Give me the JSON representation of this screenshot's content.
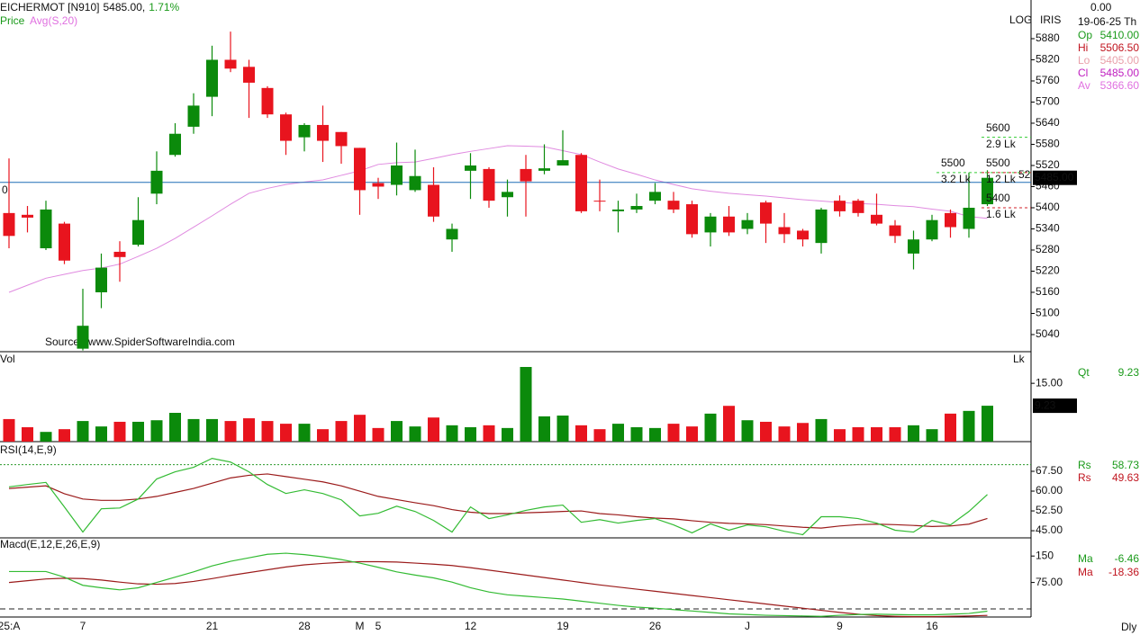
{
  "header": {
    "symbol": "EICHERMOT [N910]",
    "price": "5485.00,",
    "change": "1.71%",
    "log": "LOG",
    "iris": "IRIS",
    "footer": "Dly"
  },
  "info": {
    "top": "0.00",
    "date": "19-06-25 Th",
    "rows": [
      {
        "label": "Op",
        "value": "5410.00"
      },
      {
        "label": "Hi",
        "value": "5506.50"
      },
      {
        "label": "Lo",
        "value": "5405.00"
      },
      {
        "label": "Cl",
        "value": "5485.00"
      },
      {
        "label": "Av",
        "value": "5366.60"
      }
    ]
  },
  "chart_data": [
    {
      "type": "candlestick",
      "name": "Price",
      "source": "Source : www.SpiderSoftwareIndia.com",
      "up_color": "#0b8a0b",
      "down_color": "#e8141e",
      "categories": [
        "25:A",
        null,
        null,
        null,
        "7",
        null,
        null,
        null,
        null,
        null,
        null,
        "21",
        null,
        null,
        null,
        null,
        "28",
        null,
        null,
        "M",
        "5",
        null,
        null,
        null,
        null,
        "12",
        null,
        null,
        null,
        null,
        "19",
        null,
        null,
        null,
        null,
        "26",
        null,
        null,
        null,
        null,
        "J",
        null,
        null,
        null,
        null,
        "9",
        null,
        null,
        null,
        null,
        "16",
        null,
        null,
        null
      ],
      "open": [
        5385,
        5380,
        5285,
        5355,
        5000,
        5160,
        5275,
        5295,
        5440,
        5550,
        5630,
        5715,
        5820,
        5800,
        5740,
        5665,
        5600,
        5635,
        5615,
        5570,
        5470,
        5465,
        5450,
        5465,
        5310,
        5505,
        5510,
        5430,
        5510,
        5505,
        5520,
        5550,
        5420,
        5390,
        5395,
        5420,
        5420,
        5410,
        5330,
        5375,
        5340,
        5415,
        5345,
        5335,
        5300,
        5420,
        5420,
        5380,
        5350,
        5270,
        5310,
        5385,
        5340,
        5410
      ],
      "high": [
        5540,
        5405,
        5420,
        5360,
        5170,
        5270,
        5305,
        5430,
        5560,
        5640,
        5725,
        5860,
        5900,
        5820,
        5745,
        5670,
        5640,
        5690,
        5615,
        5570,
        5485,
        5585,
        5565,
        5515,
        5355,
        5555,
        5515,
        5480,
        5550,
        5580,
        5620,
        5555,
        5480,
        5420,
        5440,
        5470,
        5445,
        5420,
        5385,
        5405,
        5385,
        5420,
        5385,
        5340,
        5400,
        5435,
        5425,
        5440,
        5365,
        5335,
        5380,
        5395,
        5500,
        5506.5
      ],
      "low": [
        5285,
        5330,
        5280,
        5240,
        4995,
        5115,
        5190,
        5290,
        5410,
        5545,
        5610,
        5660,
        5785,
        5655,
        5655,
        5550,
        5560,
        5530,
        5525,
        5380,
        5425,
        5435,
        5445,
        5360,
        5275,
        5425,
        5400,
        5375,
        5375,
        5495,
        5520,
        5385,
        5390,
        5330,
        5385,
        5410,
        5385,
        5315,
        5290,
        5320,
        5325,
        5300,
        5300,
        5290,
        5270,
        5375,
        5375,
        5350,
        5300,
        5225,
        5305,
        5315,
        5315,
        5405
      ],
      "close": [
        5320,
        5372,
        5395,
        5250,
        5065,
        5230,
        5260,
        5365,
        5505,
        5610,
        5690,
        5820,
        5795,
        5755,
        5665,
        5590,
        5635,
        5590,
        5575,
        5450,
        5460,
        5520,
        5490,
        5375,
        5340,
        5520,
        5420,
        5445,
        5475,
        5512,
        5535,
        5390,
        5418,
        5395,
        5405,
        5445,
        5395,
        5325,
        5375,
        5330,
        5365,
        5355,
        5325,
        5310,
        5395,
        5390,
        5385,
        5355,
        5320,
        5310,
        5365,
        5345,
        5400,
        5485
      ],
      "overlays": [
        {
          "name": "Avg(S,20)",
          "color": "#e08ae0",
          "values": [
            5160,
            5180,
            5200,
            5211,
            5222,
            5229,
            5240,
            5262,
            5285,
            5313,
            5345,
            5377,
            5410,
            5441,
            5455,
            5466,
            5473,
            5479,
            5492,
            5505,
            5523,
            5528,
            5530,
            5540,
            5551,
            5560,
            5568,
            5576,
            5575,
            5573,
            5562,
            5551,
            5530,
            5510,
            5495,
            5479,
            5466,
            5454,
            5447,
            5441,
            5437,
            5433,
            5428,
            5423,
            5419,
            5415,
            5412,
            5410,
            5406,
            5403,
            5396,
            5390,
            5375,
            5370
          ]
        }
      ],
      "hline": {
        "value": 5472,
        "color": "#1f6fb5",
        "left_label": "0",
        "right_label": "52"
      },
      "levels": [
        {
          "value": 5600,
          "label": "5600",
          "volume": "2.9 Lk",
          "color": "#33cc33",
          "side": "right"
        },
        {
          "value": 5500,
          "label": "5500",
          "volume": "3.2 Lk",
          "color": "#33cc33",
          "side": "left"
        },
        {
          "value": 5500,
          "label": "5500",
          "volume": "1.2 Lk",
          "color": "#d0202a",
          "side": "right"
        },
        {
          "value": 5400,
          "label": "5400",
          "volume": "1.6 Lk",
          "color": "#d0202a",
          "side": "right"
        }
      ],
      "last_label": "5485.00",
      "ylim": [
        4994,
        5954
      ],
      "yticks": [
        5040,
        5100,
        5160,
        5220,
        5280,
        5340,
        5400,
        5460,
        5520,
        5580,
        5640,
        5700,
        5760,
        5820,
        5880
      ]
    },
    {
      "type": "bar",
      "title": "Vol",
      "unit": "Lk",
      "values": [
        5.8,
        3.7,
        2.5,
        3.2,
        5.3,
        3.9,
        5.1,
        5.1,
        5.5,
        7.4,
        5.8,
        5.8,
        5.3,
        6.0,
        5.3,
        4.6,
        4.6,
        3.2,
        5.3,
        6.9,
        3.5,
        5.3,
        3.9,
        6.2,
        4.2,
        3.7,
        4.2,
        3.5,
        19.2,
        6.5,
        6.7,
        4.2,
        3.2,
        4.6,
        3.7,
        3.5,
        4.6,
        3.9,
        7.2,
        9.2,
        5.5,
        5.1,
        3.9,
        4.8,
        5.8,
        3.2,
        3.7,
        3.7,
        3.7,
        4.2,
        3.2,
        7.2,
        7.9,
        9.23
      ],
      "colors": [
        "#e8141e",
        "#e8141e",
        "#0b8a0b",
        "#e8141e",
        "#0b8a0b",
        "#0b8a0b",
        "#e8141e",
        "#0b8a0b",
        "#0b8a0b",
        "#0b8a0b",
        "#0b8a0b",
        "#0b8a0b",
        "#e8141e",
        "#e8141e",
        "#e8141e",
        "#e8141e",
        "#0b8a0b",
        "#e8141e",
        "#e8141e",
        "#e8141e",
        "#e8141e",
        "#0b8a0b",
        "#0b8a0b",
        "#e8141e",
        "#0b8a0b",
        "#0b8a0b",
        "#e8141e",
        "#0b8a0b",
        "#0b8a0b",
        "#0b8a0b",
        "#0b8a0b",
        "#e8141e",
        "#e8141e",
        "#0b8a0b",
        "#0b8a0b",
        "#0b8a0b",
        "#e8141e",
        "#e8141e",
        "#0b8a0b",
        "#e8141e",
        "#0b8a0b",
        "#e8141e",
        "#e8141e",
        "#e8141e",
        "#0b8a0b",
        "#e8141e",
        "#e8141e",
        "#e8141e",
        "#e8141e",
        "#0b8a0b",
        "#0b8a0b",
        "#e8141e",
        "#0b8a0b",
        "#0b8a0b"
      ],
      "readout": {
        "label": "Qt",
        "value": "9.23"
      },
      "last_label": "9.23",
      "ylim": [
        0,
        22.9
      ],
      "yticks": [
        {
          "value": 15,
          "label": "15.00"
        }
      ]
    },
    {
      "type": "line",
      "title": "RSI(14,E,9)",
      "series": [
        {
          "name": "Rs",
          "color": "#33bb33",
          "readout": "58.73",
          "values": [
            61.6,
            62.5,
            63.3,
            54,
            44.5,
            53.3,
            53.6,
            57,
            64.6,
            67.3,
            69,
            72.4,
            71,
            67.3,
            62.5,
            59.1,
            60.5,
            59.1,
            56.7,
            50.6,
            51.6,
            54.3,
            52.3,
            48.9,
            44.5,
            54,
            49.6,
            51,
            52.7,
            54,
            54.7,
            48.2,
            49.2,
            47.9,
            48.9,
            49.6,
            47.2,
            44.2,
            47.6,
            45.2,
            47.2,
            46.5,
            44.8,
            43.5,
            50.3,
            50.3,
            49.6,
            47.9,
            45.2,
            44.5,
            48.9,
            47.2,
            52.3,
            58.73
          ]
        },
        {
          "name": "Rs",
          "color": "#9b1b1b",
          "readout": "49.63",
          "values": [
            61,
            61.5,
            62,
            59,
            57,
            56.5,
            56.5,
            57,
            58,
            59.5,
            61,
            63,
            65,
            66,
            66.5,
            65.5,
            64.5,
            63.5,
            62,
            60,
            58,
            56.8,
            55.6,
            54.5,
            53,
            52,
            51.5,
            51.5,
            51.8,
            52,
            52.3,
            52.5,
            51.5,
            51,
            50.3,
            49.8,
            49.5,
            48.8,
            48.2,
            47.8,
            47.6,
            47.3,
            46.8,
            46.3,
            46,
            46.8,
            47.3,
            47.5,
            47.3,
            47,
            46.6,
            46.8,
            47.5,
            49.63
          ]
        }
      ],
      "reference_line": {
        "value": 70,
        "color": "#2a9a2a",
        "style": "dotted"
      },
      "ylim": [
        42.3,
        78.4
      ],
      "yticks": [
        {
          "value": 67.5,
          "label": "67.50"
        },
        {
          "value": 60,
          "label": "60.00"
        },
        {
          "value": 52.5,
          "label": "52.50"
        },
        {
          "value": 45,
          "label": "45.00"
        }
      ]
    },
    {
      "type": "line",
      "title": "Macd(E,12,E,26,E,9)",
      "series": [
        {
          "name": "Ma",
          "color": "#33bb33",
          "readout": "-6.46",
          "values": [
            106,
            106,
            106,
            90,
            67,
            60,
            54,
            60,
            75,
            90,
            105,
            122,
            135,
            145,
            155,
            158,
            154,
            148,
            140,
            130,
            118,
            105,
            96,
            88,
            76,
            60,
            48,
            40,
            36,
            32,
            28,
            22,
            16,
            10,
            5,
            2,
            -2,
            -6,
            -10,
            -14,
            -16,
            -18,
            -19,
            -20,
            -21,
            -18,
            -16,
            -15,
            -16,
            -17,
            -17,
            -15,
            -13,
            -6.46
          ]
        },
        {
          "name": "Ma",
          "color": "#9b1b1b",
          "readout": "-18.36",
          "values": [
            75,
            80,
            85,
            87,
            86,
            82,
            76,
            71,
            70,
            72,
            78,
            86,
            95,
            103,
            111,
            119,
            125,
            129,
            132,
            134,
            134,
            133,
            130,
            127,
            123,
            117,
            110,
            103,
            96,
            89,
            82,
            75,
            68,
            62,
            56,
            50,
            44,
            38,
            32,
            26,
            20,
            14,
            8,
            2,
            -4,
            -10,
            -15,
            -19,
            -21,
            -22,
            -22,
            -21,
            -20,
            -18.36
          ]
        }
      ],
      "reference_line": {
        "value": 0,
        "color": "#222222",
        "style": "dashed"
      },
      "ylim": [
        -23,
        199
      ],
      "yticks": [
        150,
        {
          "value": 75,
          "label": "75.00"
        }
      ]
    }
  ]
}
